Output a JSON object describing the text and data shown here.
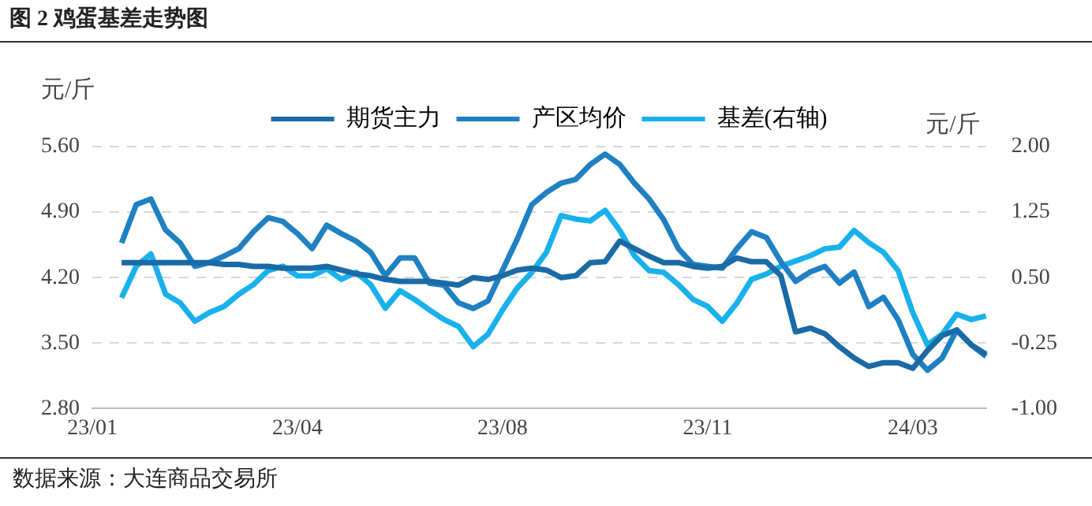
{
  "chart_data": {
    "type": "line",
    "title": "图 2 鸡蛋基差走势图",
    "ylabel": "元/斤",
    "y2label": "元/斤",
    "annotations": [
      "数据来源：大连商品交易所"
    ],
    "categories": [
      "23/01",
      null,
      null,
      null,
      null,
      null,
      null,
      null,
      null,
      null,
      null,
      null,
      null,
      null,
      "23/04",
      null,
      null,
      null,
      null,
      null,
      null,
      null,
      null,
      null,
      null,
      null,
      null,
      null,
      "23/08",
      null,
      null,
      null,
      null,
      null,
      null,
      null,
      null,
      null,
      null,
      null,
      null,
      null,
      "23/11",
      null,
      null,
      null,
      null,
      null,
      null,
      null,
      null,
      null,
      null,
      null,
      null,
      null,
      "24/03",
      null,
      null,
      null,
      null,
      null
    ],
    "series": [
      {
        "name": "期货主力",
        "color": "#1a6aa6",
        "values": [
          null,
          null,
          4.36,
          4.36,
          4.36,
          4.36,
          4.36,
          4.36,
          4.36,
          4.34,
          4.34,
          4.32,
          4.32,
          4.3,
          4.3,
          4.3,
          4.32,
          4.28,
          4.24,
          4.22,
          4.18,
          4.16,
          4.16,
          4.16,
          4.14,
          4.12,
          4.2,
          4.18,
          4.22,
          4.28,
          4.3,
          4.28,
          4.2,
          4.22,
          4.36,
          4.37,
          4.59,
          4.51,
          4.43,
          4.36,
          4.36,
          4.32,
          4.3,
          4.32,
          4.41,
          4.37,
          4.37,
          4.22,
          3.62,
          3.66,
          3.6,
          3.46,
          3.34,
          3.25,
          3.29,
          3.29,
          3.23,
          3.42,
          3.58,
          3.64,
          3.48,
          3.38
        ]
      },
      {
        "name": "产区均价",
        "color": "#1f80c2",
        "values": [
          null,
          null,
          4.57,
          4.98,
          5.04,
          4.71,
          4.57,
          4.32,
          4.36,
          4.43,
          4.51,
          4.69,
          4.84,
          4.8,
          4.67,
          4.51,
          4.76,
          4.67,
          4.59,
          4.47,
          4.22,
          4.41,
          4.41,
          4.14,
          4.12,
          3.93,
          3.87,
          3.95,
          4.28,
          4.61,
          4.98,
          5.11,
          5.21,
          5.25,
          5.41,
          5.52,
          5.41,
          5.21,
          5.04,
          4.82,
          4.51,
          4.34,
          4.32,
          4.3,
          4.51,
          4.69,
          4.63,
          4.37,
          4.16,
          4.26,
          4.32,
          4.14,
          4.26,
          3.89,
          3.99,
          3.75,
          3.38,
          3.21,
          3.34,
          3.64,
          3.48,
          3.36
        ]
      },
      {
        "name": "基差(右轴)",
        "color": "#19b1ec",
        "axis": "y2",
        "values": [
          null,
          null,
          0.27,
          0.63,
          0.77,
          0.31,
          0.21,
          0.0,
          0.1,
          0.17,
          0.31,
          0.42,
          0.58,
          0.63,
          0.52,
          0.52,
          0.6,
          0.48,
          0.56,
          0.42,
          0.15,
          0.35,
          0.25,
          0.13,
          0.02,
          -0.06,
          -0.29,
          -0.15,
          0.13,
          0.38,
          0.56,
          0.79,
          1.21,
          1.17,
          1.15,
          1.27,
          1.04,
          0.75,
          0.58,
          0.56,
          0.42,
          0.25,
          0.17,
          0.0,
          0.21,
          0.48,
          0.54,
          0.63,
          0.69,
          0.75,
          0.83,
          0.85,
          1.04,
          0.9,
          0.79,
          0.58,
          0.1,
          -0.27,
          -0.15,
          0.08,
          0.02,
          0.06
        ]
      }
    ],
    "ylim": [
      2.8,
      5.6
    ],
    "yticks": [
      {
        "value": 2.8,
        "label": "2.80"
      },
      {
        "value": 3.5,
        "label": "3.50"
      },
      {
        "value": 4.2,
        "label": "4.20"
      },
      {
        "value": 4.9,
        "label": "4.90"
      },
      {
        "value": 5.6,
        "label": "5.60"
      }
    ],
    "y2lim": [
      -1,
      2
    ],
    "y2ticks": [
      {
        "value": -1,
        "label": "-1.00"
      },
      {
        "value": -0.25,
        "label": "-0.25"
      },
      {
        "value": 0.5,
        "label": "0.50"
      },
      {
        "value": 1.25,
        "label": "1.25"
      },
      {
        "value": 2,
        "label": "2.00"
      }
    ],
    "grid": "y",
    "legend": "top",
    "marker": "none",
    "line_style": "solid"
  }
}
